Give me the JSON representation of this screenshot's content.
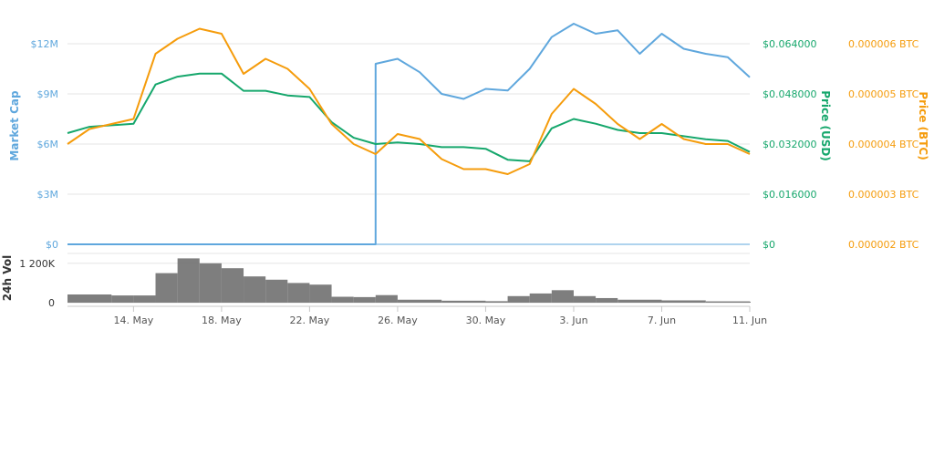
{
  "chart_data": {
    "type": "line",
    "colors": {
      "market_cap": "#5fa7dd",
      "price_usd": "#16a76c",
      "price_btc": "#f59c0c",
      "volume": "#707070",
      "grid": "#e6e6e6"
    },
    "y_axes": {
      "market_cap": {
        "label": "Market Cap",
        "ylim": [
          0,
          12000000
        ],
        "ticks": [
          {
            "v": 0,
            "t": "$0"
          },
          {
            "v": 3000000,
            "t": "$3M"
          },
          {
            "v": 6000000,
            "t": "$6M"
          },
          {
            "v": 9000000,
            "t": "$9M"
          },
          {
            "v": 12000000,
            "t": "$12M"
          }
        ]
      },
      "price_usd": {
        "label": "Price (USD)",
        "ylim": [
          0,
          0.064
        ],
        "ticks": [
          {
            "v": 0,
            "t": "$0"
          },
          {
            "v": 0.016,
            "t": "$0.016000"
          },
          {
            "v": 0.032,
            "t": "$0.032000"
          },
          {
            "v": 0.048,
            "t": "$0.048000"
          },
          {
            "v": 0.064,
            "t": "$0.064000"
          }
        ]
      },
      "price_btc": {
        "label": "Price (BTC)",
        "ylim": [
          2e-06,
          6e-06
        ],
        "ticks": [
          {
            "v": 2e-06,
            "t": "0.000002 BTC"
          },
          {
            "v": 3e-06,
            "t": "0.000003 BTC"
          },
          {
            "v": 4e-06,
            "t": "0.000004 BTC"
          },
          {
            "v": 5e-06,
            "t": "0.000005 BTC"
          },
          {
            "v": 6e-06,
            "t": "0.000006 BTC"
          }
        ]
      },
      "volume": {
        "label": "24h Vol",
        "ylim": [
          0,
          1500000
        ],
        "ticks": [
          {
            "v": 0,
            "t": "0"
          },
          {
            "v": 1200000,
            "t": "1 200K"
          }
        ]
      }
    },
    "x_axis": {
      "range": [
        "2018-05-11",
        "2018-06-11"
      ],
      "ticks": [
        {
          "date": "2018-05-14",
          "t": "14. May"
        },
        {
          "date": "2018-05-18",
          "t": "18. May"
        },
        {
          "date": "2018-05-22",
          "t": "22. May"
        },
        {
          "date": "2018-05-26",
          "t": "26. May"
        },
        {
          "date": "2018-05-30",
          "t": "30. May"
        },
        {
          "date": "2018-06-03",
          "t": "3. Jun"
        },
        {
          "date": "2018-06-07",
          "t": "7. Jun"
        },
        {
          "date": "2018-06-11",
          "t": "11. Jun"
        }
      ]
    },
    "grid": true,
    "series": [
      {
        "name": "Market Cap",
        "axis": "market_cap",
        "x": [
          "2018-05-11",
          "2018-05-15",
          "2018-05-20",
          "2018-05-24",
          "2018-05-25",
          "2018-05-25",
          "2018-05-26",
          "2018-05-27",
          "2018-05-28",
          "2018-05-29",
          "2018-05-30",
          "2018-05-31",
          "2018-06-01",
          "2018-06-02",
          "2018-06-03",
          "2018-06-04",
          "2018-06-05",
          "2018-06-06",
          "2018-06-07",
          "2018-06-08",
          "2018-06-09",
          "2018-06-10",
          "2018-06-11"
        ],
        "values": [
          0,
          0,
          0,
          0,
          0,
          10800000,
          11100000,
          10300000,
          9000000,
          8700000,
          9300000,
          9200000,
          10500000,
          12400000,
          13200000,
          12600000,
          12800000,
          11400000,
          12600000,
          11700000,
          11400000,
          11200000,
          10000000
        ]
      },
      {
        "name": "Price (USD)",
        "axis": "price_usd",
        "x": [
          "2018-05-11",
          "2018-05-12",
          "2018-05-13",
          "2018-05-14",
          "2018-05-15",
          "2018-05-16",
          "2018-05-17",
          "2018-05-18",
          "2018-05-19",
          "2018-05-20",
          "2018-05-21",
          "2018-05-22",
          "2018-05-23",
          "2018-05-24",
          "2018-05-25",
          "2018-05-26",
          "2018-05-27",
          "2018-05-28",
          "2018-05-29",
          "2018-05-30",
          "2018-05-31",
          "2018-06-01",
          "2018-06-02",
          "2018-06-03",
          "2018-06-04",
          "2018-06-05",
          "2018-06-06",
          "2018-06-07",
          "2018-06-08",
          "2018-06-09",
          "2018-06-10",
          "2018-06-11"
        ],
        "values": [
          0.0355,
          0.0375,
          0.038,
          0.0385,
          0.051,
          0.0535,
          0.0545,
          0.0545,
          0.049,
          0.049,
          0.0475,
          0.047,
          0.039,
          0.034,
          0.032,
          0.0325,
          0.032,
          0.031,
          0.031,
          0.0305,
          0.027,
          0.0265,
          0.037,
          0.04,
          0.0385,
          0.0365,
          0.0355,
          0.0355,
          0.0345,
          0.0335,
          0.033,
          0.0295
        ]
      },
      {
        "name": "Price (BTC)",
        "axis": "price_btc",
        "x": [
          "2018-05-11",
          "2018-05-12",
          "2018-05-13",
          "2018-05-14",
          "2018-05-15",
          "2018-05-16",
          "2018-05-17",
          "2018-05-18",
          "2018-05-19",
          "2018-05-20",
          "2018-05-21",
          "2018-05-22",
          "2018-05-23",
          "2018-05-24",
          "2018-05-25",
          "2018-05-26",
          "2018-05-27",
          "2018-05-28",
          "2018-05-29",
          "2018-05-30",
          "2018-05-31",
          "2018-06-01",
          "2018-06-02",
          "2018-06-03",
          "2018-06-04",
          "2018-06-05",
          "2018-06-06",
          "2018-06-07",
          "2018-06-08",
          "2018-06-09",
          "2018-06-10",
          "2018-06-11"
        ],
        "values": [
          4e-06,
          4.3e-06,
          4.4e-06,
          4.5e-06,
          5.8e-06,
          6.1e-06,
          6.3e-06,
          6.2e-06,
          5.4e-06,
          5.7e-06,
          5.5e-06,
          5.1e-06,
          4.4e-06,
          4e-06,
          3.8e-06,
          4.2e-06,
          4.1e-06,
          3.7e-06,
          3.5e-06,
          3.5e-06,
          3.4e-06,
          3.6e-06,
          4.6e-06,
          5.1e-06,
          4.8e-06,
          4.4e-06,
          4.1e-06,
          4.4e-06,
          4.1e-06,
          4e-06,
          4e-06,
          3.8e-06
        ]
      },
      {
        "name": "24h Vol",
        "axis": "volume",
        "type": "bar",
        "x": [
          "2018-05-11",
          "2018-05-13",
          "2018-05-14",
          "2018-05-15",
          "2018-05-16",
          "2018-05-17",
          "2018-05-18",
          "2018-05-19",
          "2018-05-20",
          "2018-05-21",
          "2018-05-22",
          "2018-05-23",
          "2018-05-24",
          "2018-05-25",
          "2018-05-26",
          "2018-05-28",
          "2018-05-30",
          "2018-05-31",
          "2018-06-01",
          "2018-06-02",
          "2018-06-03",
          "2018-06-04",
          "2018-06-05",
          "2018-06-07",
          "2018-06-09",
          "2018-06-11"
        ],
        "values": [
          250000,
          220000,
          220000,
          900000,
          1350000,
          1200000,
          1050000,
          800000,
          700000,
          600000,
          550000,
          180000,
          170000,
          230000,
          90000,
          60000,
          45000,
          200000,
          280000,
          380000,
          200000,
          140000,
          90000,
          70000,
          40000,
          30000
        ]
      }
    ]
  }
}
